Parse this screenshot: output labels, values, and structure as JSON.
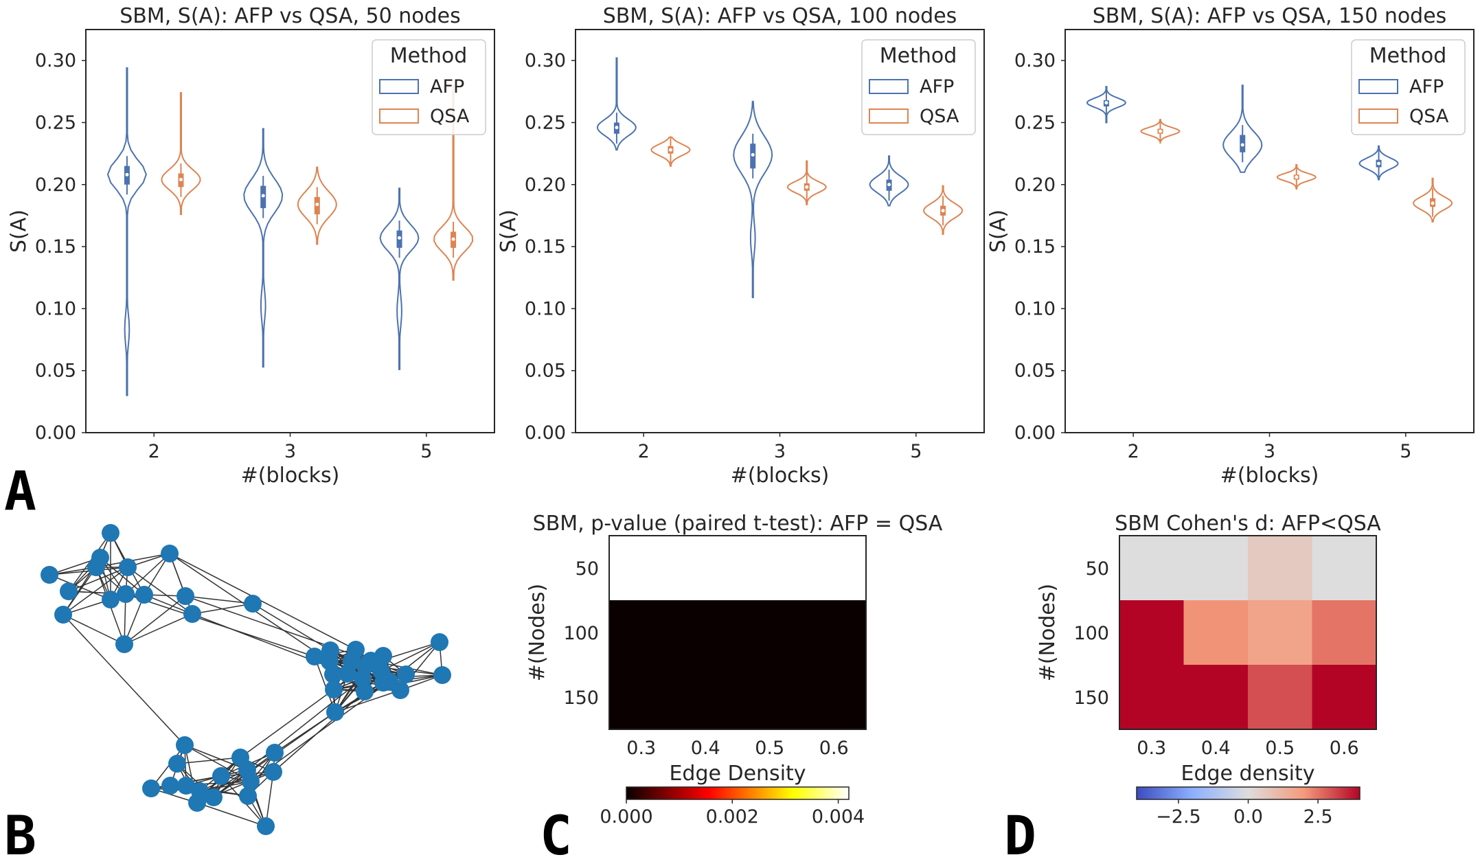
{
  "figure_labels": {
    "a": "A",
    "b": "B",
    "c": "C",
    "d": "D"
  },
  "colors": {
    "afp": "#4c72b0",
    "qsa": "#dd8452",
    "edge": "#333333",
    "node": "#1f77b4"
  },
  "chart_data": [
    {
      "type": "violin",
      "title": "SBM, S(A): AFP vs QSA, 50 nodes",
      "xlabel": "#(blocks)",
      "ylabel": "S(A)",
      "categories": [
        "2",
        "3",
        "5"
      ],
      "ylim": [
        0.0,
        0.325
      ],
      "yticks": [
        "0.00",
        "0.05",
        "0.10",
        "0.15",
        "0.20",
        "0.25",
        "0.30"
      ],
      "legend": {
        "title": "Method",
        "entries": [
          "AFP",
          "QSA"
        ],
        "position": "top-right"
      },
      "series": [
        {
          "name": "AFP",
          "median": [
            0.208,
            0.191,
            0.157
          ],
          "q1": [
            0.2,
            0.181,
            0.149
          ],
          "q3": [
            0.215,
            0.199,
            0.163
          ],
          "min": [
            0.03,
            0.053,
            0.051
          ],
          "max": [
            0.294,
            0.245,
            0.197
          ]
        },
        {
          "name": "QSA",
          "median": [
            0.204,
            0.184,
            0.156
          ],
          "q1": [
            0.198,
            0.176,
            0.149
          ],
          "q3": [
            0.209,
            0.19,
            0.162
          ],
          "min": [
            0.176,
            0.152,
            0.123
          ],
          "max": [
            0.274,
            0.214,
            0.28
          ]
        }
      ]
    },
    {
      "type": "violin",
      "title": "SBM, S(A): AFP vs QSA, 100 nodes",
      "xlabel": "#(blocks)",
      "ylabel": "S(A)",
      "categories": [
        "2",
        "3",
        "5"
      ],
      "ylim": [
        0.0,
        0.325
      ],
      "yticks": [
        "0.00",
        "0.05",
        "0.10",
        "0.15",
        "0.20",
        "0.25",
        "0.30"
      ],
      "legend": {
        "title": "Method",
        "entries": [
          "AFP",
          "QSA"
        ],
        "position": "top-right"
      },
      "series": [
        {
          "name": "AFP",
          "median": [
            0.246,
            0.224,
            0.2
          ],
          "q1": [
            0.241,
            0.213,
            0.195
          ],
          "q3": [
            0.25,
            0.233,
            0.204
          ],
          "min": [
            0.228,
            0.109,
            0.183
          ],
          "max": [
            0.302,
            0.267,
            0.223
          ]
        },
        {
          "name": "QSA",
          "median": [
            0.228,
            0.198,
            0.179
          ],
          "q1": [
            0.225,
            0.195,
            0.175
          ],
          "q3": [
            0.231,
            0.201,
            0.183
          ],
          "min": [
            0.215,
            0.184,
            0.16
          ],
          "max": [
            0.238,
            0.219,
            0.199
          ]
        }
      ]
    },
    {
      "type": "violin",
      "title": "SBM, S(A): AFP vs QSA, 150 nodes",
      "xlabel": "#(blocks)",
      "ylabel": "S(A)",
      "categories": [
        "2",
        "3",
        "5"
      ],
      "ylim": [
        0.0,
        0.325
      ],
      "yticks": [
        "0.00",
        "0.05",
        "0.10",
        "0.15",
        "0.20",
        "0.25",
        "0.30"
      ],
      "legend": {
        "title": "Method",
        "entries": [
          "AFP",
          "QSA"
        ],
        "position": "top-right"
      },
      "series": [
        {
          "name": "AFP",
          "median": [
            0.266,
            0.232,
            0.217
          ],
          "q1": [
            0.263,
            0.226,
            0.214
          ],
          "q3": [
            0.268,
            0.24,
            0.22
          ],
          "min": [
            0.25,
            0.21,
            0.204
          ],
          "max": [
            0.279,
            0.28,
            0.231
          ]
        },
        {
          "name": "QSA",
          "median": [
            0.243,
            0.206,
            0.185
          ],
          "q1": [
            0.241,
            0.204,
            0.182
          ],
          "q3": [
            0.245,
            0.208,
            0.189
          ],
          "min": [
            0.235,
            0.197,
            0.17
          ],
          "max": [
            0.252,
            0.216,
            0.205
          ]
        }
      ]
    },
    {
      "type": "heatmap",
      "title": "SBM, p-value (paired t-test): AFP = QSA",
      "xlabel": "Edge Density",
      "ylabel": "#(Nodes)",
      "x": [
        "0.3",
        "0.4",
        "0.5",
        "0.6"
      ],
      "y": [
        "50",
        "100",
        "150"
      ],
      "values": [
        [
          0.0042,
          0.0042,
          0.0042,
          0.0042
        ],
        [
          0.0,
          0.0,
          0.0,
          0.0
        ],
        [
          0.0,
          0.0,
          0.0,
          0.0
        ]
      ],
      "colorbar": {
        "cmap": "hot",
        "range": [
          0.0,
          0.0042
        ],
        "ticks": [
          "0.000",
          "0.002",
          "0.004"
        ]
      }
    },
    {
      "type": "heatmap",
      "title": "SBM Cohen's d: AFP<QSA",
      "xlabel": "Edge density",
      "ylabel": "#(Nodes)",
      "x": [
        "0.3",
        "0.4",
        "0.5",
        "0.6"
      ],
      "y": [
        "50",
        "100",
        "150"
      ],
      "values": [
        [
          0.0,
          0.0,
          0.6,
          0.0
        ],
        [
          4.0,
          2.1,
          1.7,
          2.5
        ],
        [
          4.0,
          4.0,
          3.0,
          4.0
        ]
      ],
      "colorbar": {
        "cmap": "coolwarm",
        "range": [
          -4.0,
          4.0
        ],
        "ticks": [
          "−2.5",
          "0.0",
          "2.5"
        ]
      }
    }
  ]
}
